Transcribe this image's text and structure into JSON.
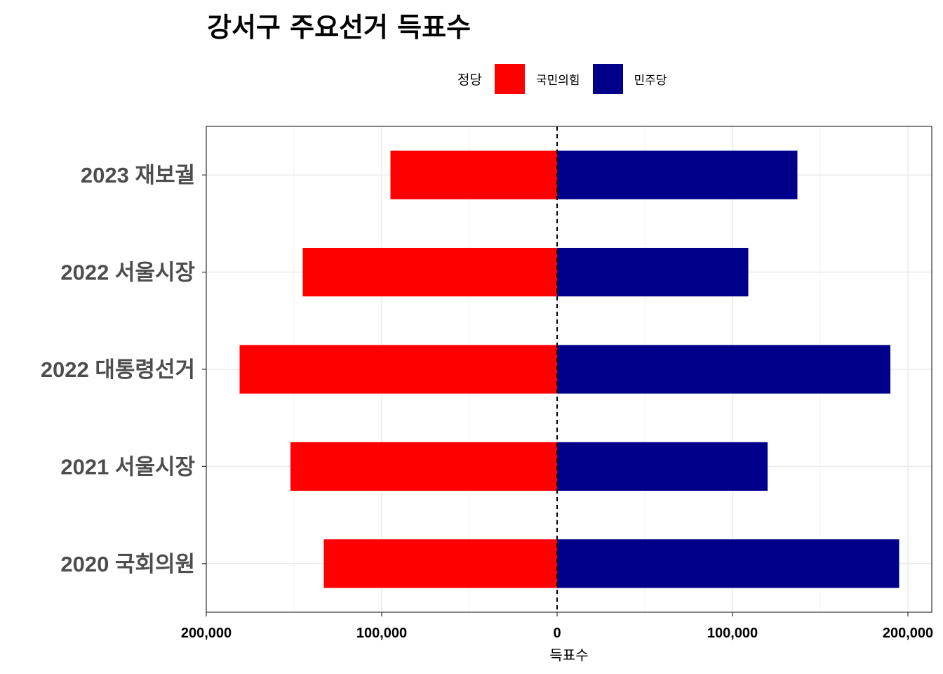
{
  "title": "강서구 주요선거 득표수",
  "legend": {
    "title": "정당",
    "items": [
      {
        "label": "국민의힘",
        "color": "#FF0000"
      },
      {
        "label": "민주당",
        "color": "#00008B"
      }
    ]
  },
  "chart_data": {
    "type": "bar",
    "orientation": "horizontal-diverging",
    "title": "강서구 주요선거 득표수",
    "xlabel": "득표수",
    "ylabel": "",
    "xlim": [
      -200000,
      200000
    ],
    "x_ticks": [
      -200000,
      -100000,
      0,
      100000,
      200000
    ],
    "x_tick_labels": [
      "200,000",
      "100,000",
      "0",
      "100,000",
      "200,000"
    ],
    "categories": [
      "2023 재보궐",
      "2022 서울시장",
      "2022 대통령선거",
      "2021 서울시장",
      "2020 국회의원"
    ],
    "series": [
      {
        "name": "국민의힘",
        "color": "#FF0000",
        "values": [
          95000,
          145000,
          181000,
          152000,
          133000
        ]
      },
      {
        "name": "민주당",
        "color": "#00008B",
        "values": [
          137000,
          109000,
          190000,
          120000,
          195000
        ]
      }
    ],
    "zero_line": "dashed",
    "grid": true,
    "legend_position": "top"
  }
}
